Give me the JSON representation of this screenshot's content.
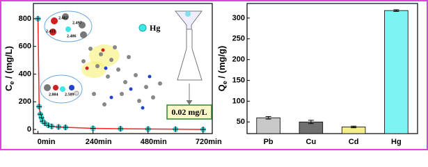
{
  "chart_data": [
    {
      "type": "line",
      "ylabel": [
        "C",
        "e",
        " / (mg/L)"
      ],
      "x": [
        0,
        5,
        10,
        15,
        20,
        30,
        45,
        60,
        90,
        120,
        240,
        360,
        480,
        600,
        720
      ],
      "series": [
        {
          "name": "Hg",
          "color": "#ff2020",
          "marker_color": "#3fe6e6",
          "values": [
            800,
            165,
            110,
            85,
            60,
            45,
            30,
            22,
            18,
            15,
            8,
            5,
            3,
            2,
            0.02
          ]
        }
      ],
      "xlim": [
        -20,
        760
      ],
      "xticks": [
        {
          "value": 0,
          "label": "0min"
        },
        {
          "value": 240,
          "label": "240min"
        },
        {
          "value": 480,
          "label": "480min"
        },
        {
          "value": 720,
          "label": "720min"
        }
      ],
      "ylim": [
        -30,
        910
      ],
      "yticks": [
        0,
        200,
        400,
        600,
        800
      ],
      "annotations": [
        "0.02 mg/L",
        "2.462",
        "2.497",
        "2.413",
        "2.406",
        "2.804",
        "2.589"
      ]
    },
    {
      "type": "bar",
      "ylabel": [
        "Q",
        "e",
        " / (mg/g)"
      ],
      "categories": [
        "Pb",
        "Cu",
        "Cd",
        "Hg"
      ],
      "values": [
        60,
        50,
        38,
        318
      ],
      "errors": [
        3,
        4,
        2,
        2
      ],
      "colors": [
        "#c8c8c8",
        "#707070",
        "#f3ee8a",
        "#7ef3f3"
      ],
      "ylim": [
        22,
        335
      ],
      "yticks": [
        50,
        100,
        150,
        200,
        250,
        300
      ]
    }
  ]
}
